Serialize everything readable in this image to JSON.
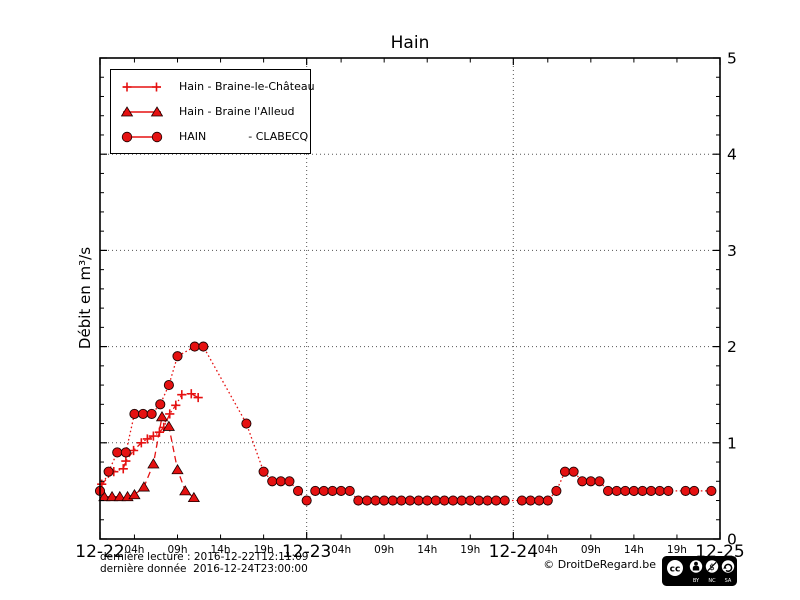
{
  "title": "Hain",
  "ylabel": "Débit en m³/s",
  "footer": {
    "line1": "dernière lecture : 2016-12-22T12:11:09",
    "line2": "dernière donnée  2016-12-24T23:00:00",
    "copyright": "© DroitDeRegard.be",
    "cc_logo": "cc",
    "cc_labels": [
      "BY",
      "NC",
      "SA"
    ]
  },
  "colors": {
    "series_red": "#e51111",
    "marker_edge": "#1a0000",
    "grid": "#555555",
    "axis": "#000000",
    "background": "#ffffff"
  },
  "chart_data": {
    "type": "line",
    "title": "Hain",
    "xlabel": "",
    "ylabel": "Débit en m³/s",
    "x_unit": "hours since 2016-12-22 00:00",
    "xlim": [
      0,
      72
    ],
    "ylim": [
      0,
      5
    ],
    "grid": "dotted horizontal at y=1..4, dotted vertical at day boundaries",
    "legend_position": "upper left",
    "y_ticks": [
      0,
      1,
      2,
      3,
      4,
      5
    ],
    "y_minor_step": 0.2,
    "x_day_ticks": [
      {
        "pos": 0,
        "label": "12-22"
      },
      {
        "pos": 24,
        "label": "12-23"
      },
      {
        "pos": 48,
        "label": "12-24"
      },
      {
        "pos": 72,
        "label": "12-25"
      }
    ],
    "x_hour_ticks": [
      {
        "pos": 4,
        "label": "04h"
      },
      {
        "pos": 9,
        "label": "09h"
      },
      {
        "pos": 14,
        "label": "14h"
      },
      {
        "pos": 19,
        "label": "19h"
      },
      {
        "pos": 28,
        "label": "04h"
      },
      {
        "pos": 33,
        "label": "09h"
      },
      {
        "pos": 38,
        "label": "14h"
      },
      {
        "pos": 43,
        "label": "19h"
      },
      {
        "pos": 52,
        "label": "04h"
      },
      {
        "pos": 57,
        "label": "09h"
      },
      {
        "pos": 62,
        "label": "14h"
      },
      {
        "pos": 67,
        "label": "19h"
      }
    ],
    "series": [
      {
        "name": "Hain - Braine-le-Château",
        "marker": "plus",
        "linestyle": "dashdot",
        "color": "#e51111",
        "points": [
          [
            0.2,
            0.57
          ],
          [
            1.6,
            0.7
          ],
          [
            2.7,
            0.73
          ],
          [
            3.0,
            0.81
          ],
          [
            3.9,
            0.92
          ],
          [
            4.8,
            1.0
          ],
          [
            5.5,
            1.04
          ],
          [
            6.2,
            1.07
          ],
          [
            6.9,
            1.11
          ],
          [
            7.4,
            1.16
          ],
          [
            8.1,
            1.3
          ],
          [
            8.8,
            1.39
          ],
          [
            9.5,
            1.5
          ],
          [
            10.6,
            1.51
          ],
          [
            11.4,
            1.47
          ]
        ]
      },
      {
        "name": "Hain - Braine l'Alleud",
        "marker": "triangle",
        "linestyle": "dashed",
        "color": "#e51111",
        "points": [
          [
            0.5,
            0.44
          ],
          [
            1.4,
            0.44
          ],
          [
            2.3,
            0.44
          ],
          [
            3.2,
            0.44
          ],
          [
            4.0,
            0.46
          ],
          [
            5.1,
            0.54
          ],
          [
            6.2,
            0.78
          ],
          [
            7.2,
            1.27
          ],
          [
            8.0,
            1.17
          ],
          [
            9.0,
            0.72
          ],
          [
            9.9,
            0.5
          ],
          [
            10.9,
            0.43
          ]
        ]
      },
      {
        "name": "HAIN            - CLABECQ",
        "marker": "circle",
        "linestyle": "dotted",
        "color": "#e51111",
        "points": [
          [
            0,
            0.5
          ],
          [
            1,
            0.7
          ],
          [
            2,
            0.9
          ],
          [
            3,
            0.9
          ],
          [
            4,
            1.3
          ],
          [
            5,
            1.3
          ],
          [
            6,
            1.3
          ],
          [
            7,
            1.4
          ],
          [
            8,
            1.6
          ],
          [
            9,
            1.9
          ],
          [
            11,
            2.0
          ],
          [
            12,
            2.0
          ],
          [
            17,
            1.2
          ],
          [
            19,
            0.7
          ],
          [
            20,
            0.6
          ],
          [
            21,
            0.6
          ],
          [
            22,
            0.6
          ],
          [
            23,
            0.5
          ],
          [
            24,
            0.4
          ],
          [
            25,
            0.5
          ],
          [
            26,
            0.5
          ],
          [
            27,
            0.5
          ],
          [
            28,
            0.5
          ],
          [
            29,
            0.5
          ],
          [
            30,
            0.4
          ],
          [
            31,
            0.4
          ],
          [
            32,
            0.4
          ],
          [
            33,
            0.4
          ],
          [
            34,
            0.4
          ],
          [
            35,
            0.4
          ],
          [
            36,
            0.4
          ],
          [
            37,
            0.4
          ],
          [
            38,
            0.4
          ],
          [
            39,
            0.4
          ],
          [
            40,
            0.4
          ],
          [
            41,
            0.4
          ],
          [
            42,
            0.4
          ],
          [
            43,
            0.4
          ],
          [
            44,
            0.4
          ],
          [
            45,
            0.4
          ],
          [
            46,
            0.4
          ],
          [
            47,
            0.4
          ],
          [
            49,
            0.4
          ],
          [
            50,
            0.4
          ],
          [
            51,
            0.4
          ],
          [
            52,
            0.4
          ],
          [
            53,
            0.5
          ],
          [
            54,
            0.7
          ],
          [
            55,
            0.7
          ],
          [
            56,
            0.6
          ],
          [
            57,
            0.6
          ],
          [
            58,
            0.6
          ],
          [
            59,
            0.5
          ],
          [
            60,
            0.5
          ],
          [
            61,
            0.5
          ],
          [
            62,
            0.5
          ],
          [
            63,
            0.5
          ],
          [
            64,
            0.5
          ],
          [
            65,
            0.5
          ],
          [
            66,
            0.5
          ],
          [
            68,
            0.5
          ],
          [
            69,
            0.5
          ],
          [
            71,
            0.5
          ]
        ]
      }
    ]
  }
}
